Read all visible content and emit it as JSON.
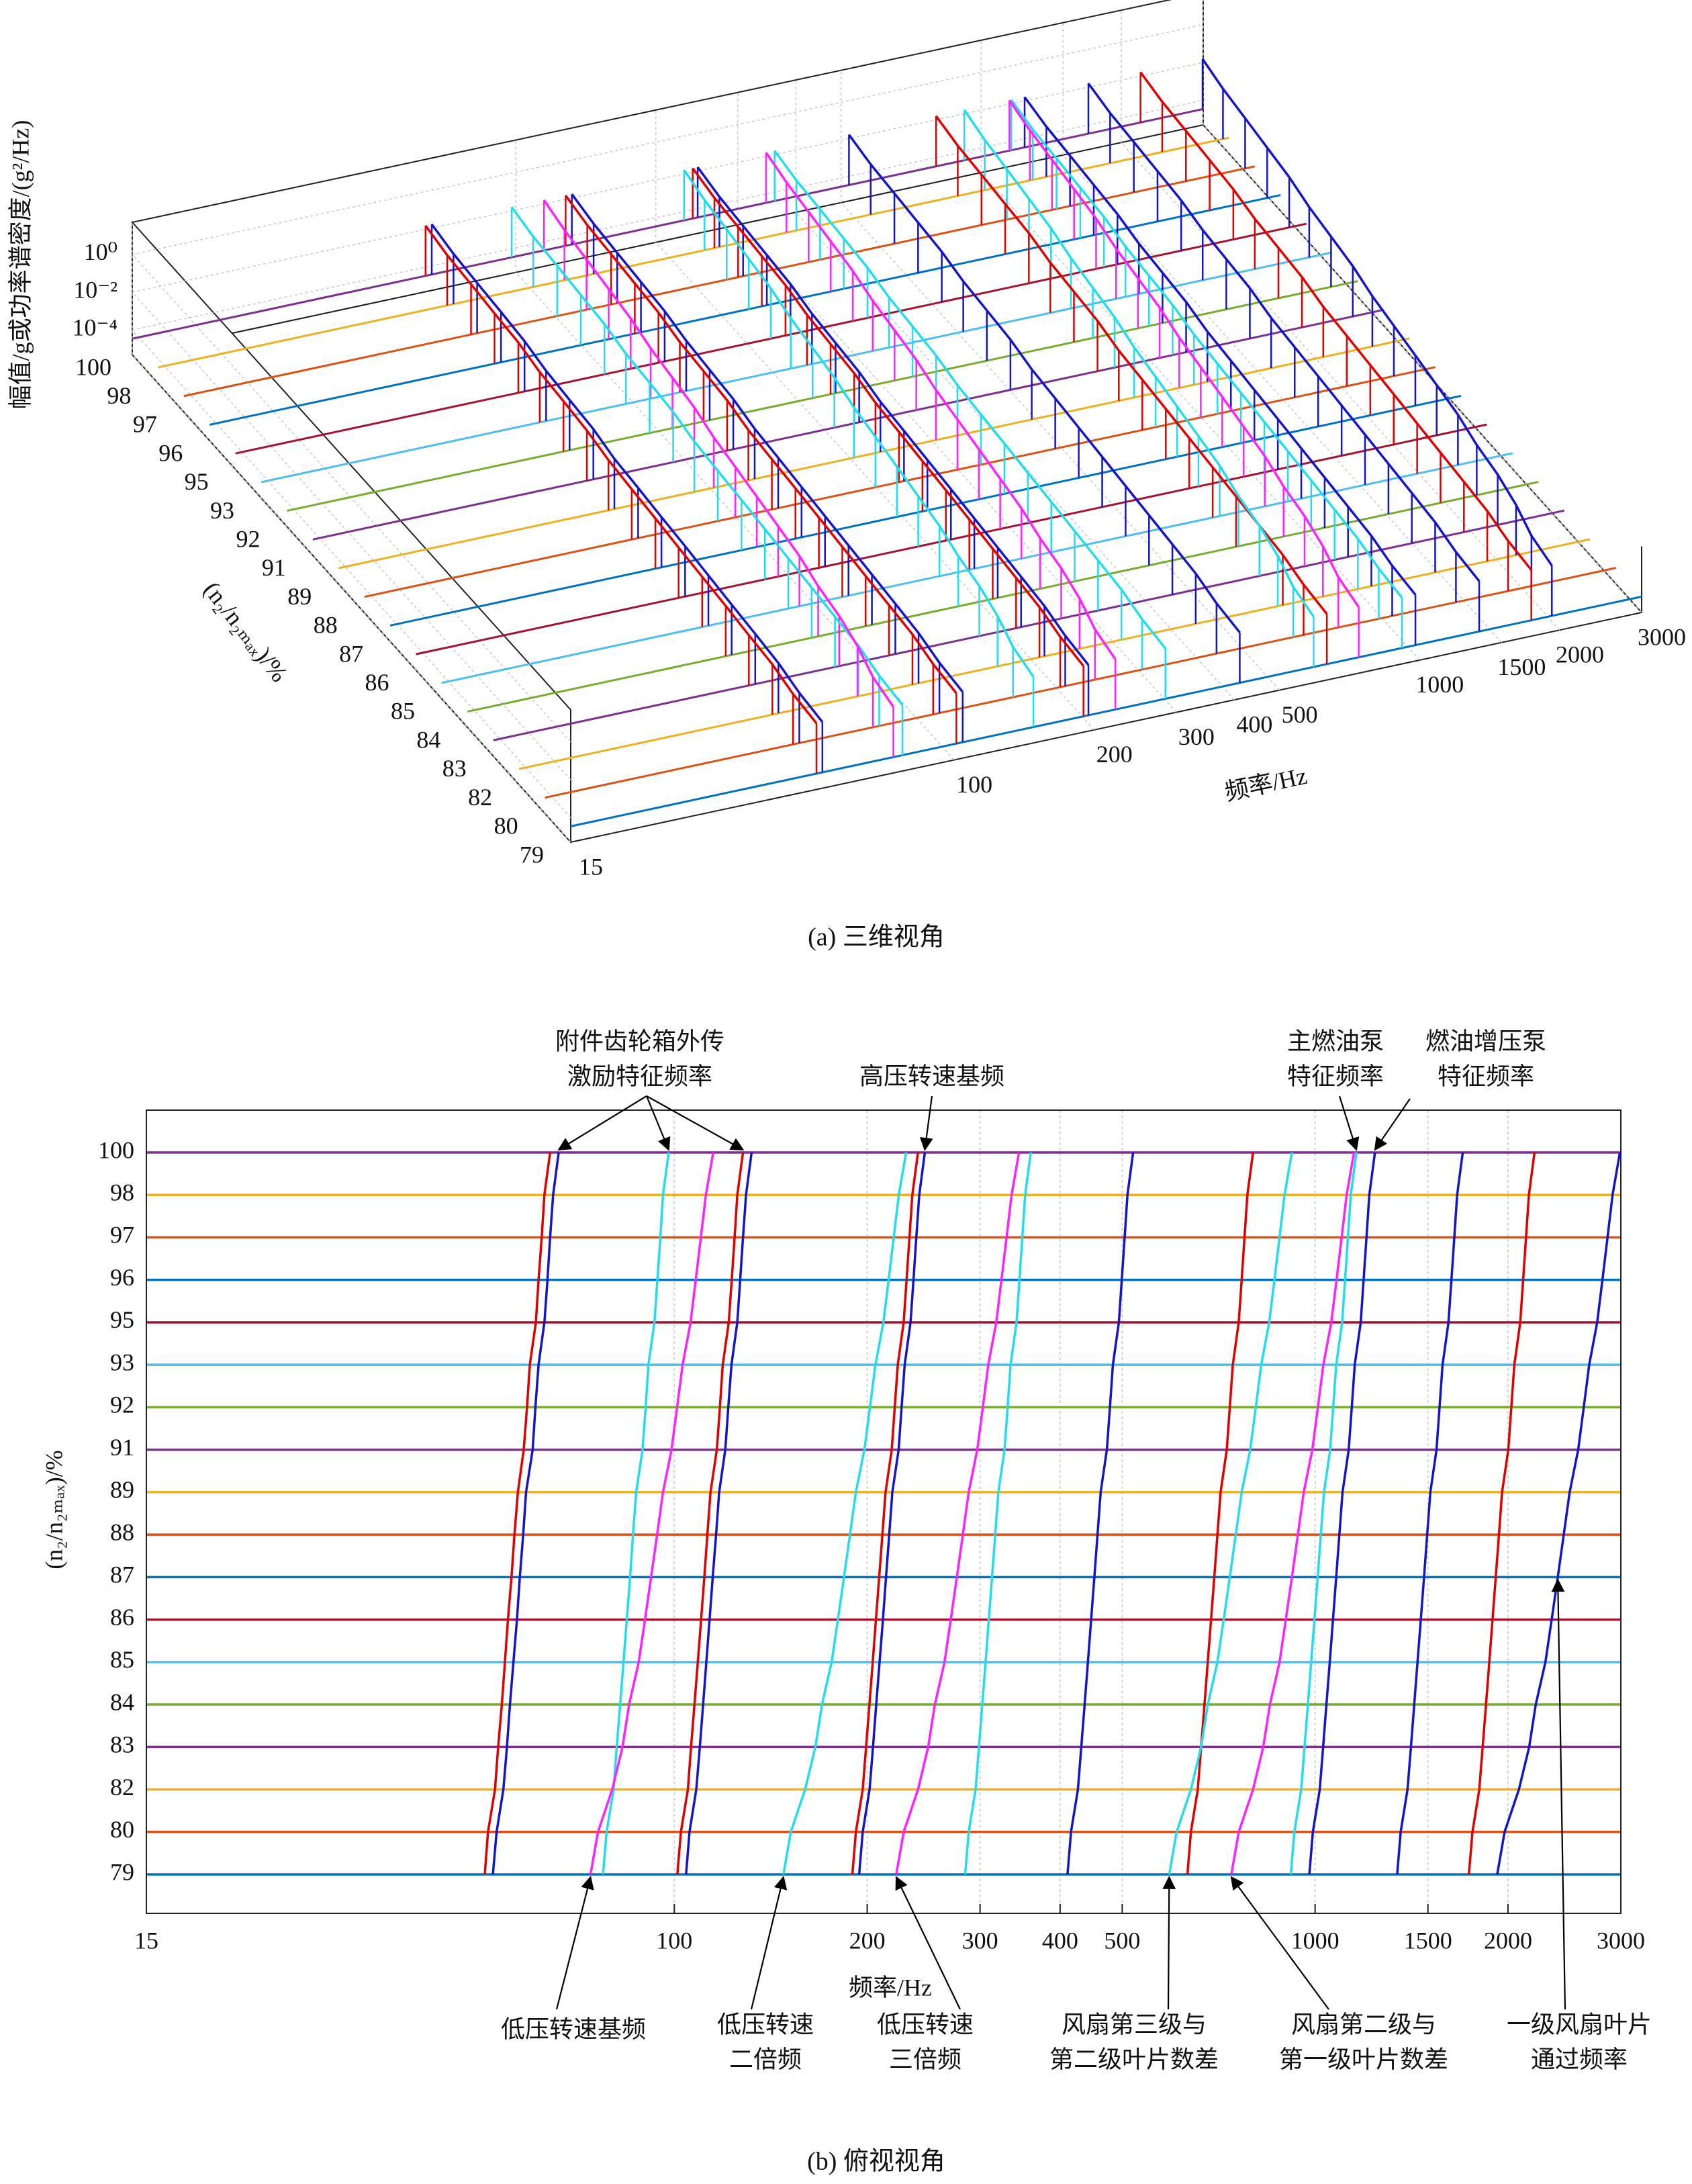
{
  "chart_data": [
    {
      "type": "waterfall3d",
      "caption": "(a) 三维视角",
      "xlabel": "频率/Hz",
      "ylabel": "(n₂/n₂ₘₐₓ)/%",
      "zlabel": "幅值/g或功率谱密度/(g²/Hz)",
      "xlim": [
        15,
        3000
      ],
      "xticks": [
        15,
        100,
        200,
        300,
        400,
        500,
        1000,
        1500,
        2000,
        3000
      ],
      "xscale": "log",
      "zlim": [
        5e-06,
        50
      ],
      "zscale": "log",
      "zticks": [
        {
          "value": 1,
          "label": "10⁰"
        },
        {
          "value": 0.01,
          "label": "10⁻²"
        },
        {
          "value": 0.0001,
          "label": "10⁻⁴"
        }
      ],
      "grid": true
    },
    {
      "type": "line",
      "caption": "(b) 俯视视角",
      "xlabel": "频率/Hz",
      "ylabel": "(n₂/n₂ₘₐₓ)/%",
      "xlim": [
        15,
        3000
      ],
      "xticks": [
        15,
        100,
        200,
        300,
        400,
        500,
        1000,
        1500,
        2000,
        3000
      ],
      "xscale": "log",
      "grid": true,
      "categories": [
        79,
        80,
        82,
        83,
        84,
        85,
        86,
        87,
        88,
        89,
        91,
        92,
        93,
        95,
        96,
        97,
        98,
        100
      ],
      "row_colors": [
        "#0072BD",
        "#D95319",
        "#EDB120",
        "#7E2F8E",
        "#77AC30",
        "#4DBEEE",
        "#A2142F",
        "#0072BD",
        "#D95319",
        "#EDB120",
        "#7E2F8E",
        "#77AC30",
        "#4DBEEE",
        "#A2142F",
        "#0072BD",
        "#D95319",
        "#EDB120",
        "#7E2F8E"
      ],
      "series": [
        {
          "color": "#E00000",
          "values": [
            50.6,
            51.2,
            52.5,
            53.1,
            53.8,
            54.4,
            55.0,
            55.7,
            56.3,
            57.0,
            58.2,
            58.9,
            59.5,
            60.8,
            61.4,
            62.1,
            62.7,
            64
          ]
        },
        {
          "color": "#1414C8",
          "values": [
            52.1,
            52.8,
            54.1,
            54.8,
            55.4,
            56.1,
            56.8,
            57.4,
            58.1,
            58.7,
            60.1,
            60.7,
            61.4,
            62.7,
            63.4,
            64.0,
            64.7,
            66
          ]
        },
        {
          "color": "#22DDEE",
          "values": [
            77.4,
            78.4,
            80.4,
            81.3,
            82.3,
            83.3,
            84.3,
            85.3,
            86.2,
            87.2,
            89.2,
            90.2,
            91.1,
            93.1,
            94.1,
            95.1,
            96.0,
            98
          ]
        },
        {
          "color": "#E00000",
          "values": [
            101.1,
            102.4,
            105.0,
            106.2,
            107.5,
            108.8,
            110.1,
            111.4,
            112.6,
            113.9,
            116.5,
            117.8,
            119.0,
            121.6,
            122.9,
            124.2,
            125.4,
            128
          ]
        },
        {
          "color": "#1414C8",
          "values": [
            104.3,
            105.6,
            108.2,
            109.6,
            110.9,
            112.2,
            113.5,
            114.8,
            116.2,
            117.5,
            120.1,
            121.4,
            122.8,
            125.4,
            126.7,
            128.0,
            129.4,
            132
          ]
        },
        {
          "color": "#E00000",
          "values": [
            189.6,
            192,
            196.8,
            199.2,
            201.6,
            204,
            206.4,
            208.8,
            211.2,
            213.6,
            218.4,
            220.8,
            223.2,
            228,
            230.4,
            232.8,
            235.2,
            240
          ]
        },
        {
          "color": "#1414C8",
          "values": [
            194.3,
            196.8,
            201.7,
            204.2,
            206.6,
            209.1,
            211.6,
            214.0,
            216.5,
            218.9,
            223.9,
            226.3,
            228.8,
            233.7,
            236.2,
            238.6,
            241.1,
            246
          ]
        },
        {
          "color": "#22DDEE",
          "values": [
            284.4,
            288,
            295.2,
            298.8,
            302.4,
            306,
            309.6,
            313.2,
            316.8,
            320.4,
            327.6,
            331.2,
            334.8,
            342,
            345.6,
            349.2,
            352.8,
            360
          ]
        },
        {
          "color": "#1414C8",
          "values": [
            410.8,
            416,
            426.4,
            431.6,
            436.8,
            442,
            447.2,
            452.4,
            457.6,
            462.8,
            473.2,
            478.4,
            483.6,
            494,
            499.2,
            504.4,
            509.6,
            520
          ]
        },
        {
          "color": "#E00000",
          "values": [
            632,
            640,
            656,
            664,
            672,
            680,
            688,
            696,
            704,
            712,
            728,
            736,
            744,
            760,
            768,
            776,
            784,
            800
          ]
        },
        {
          "color": "#22DDEE",
          "values": [
            916.4,
            928,
            951.2,
            962.8,
            974.4,
            986,
            997.6,
            1009.2,
            1020.8,
            1032.4,
            1055.6,
            1067.2,
            1078.8,
            1102,
            1113.6,
            1125.2,
            1136.8,
            1160
          ]
        },
        {
          "color": "#1414C8",
          "values": [
            979.6,
            992,
            1016.8,
            1029.2,
            1041.6,
            1054,
            1066.4,
            1078.8,
            1091.2,
            1103.6,
            1128.4,
            1140.8,
            1153.2,
            1178,
            1190.4,
            1202.8,
            1215.2,
            1240
          ]
        },
        {
          "color": "#1414C8",
          "values": [
            1343,
            1360,
            1394,
            1411,
            1428,
            1445,
            1462,
            1479,
            1496,
            1513,
            1547,
            1564,
            1581,
            1615,
            1632,
            1649,
            1666,
            1700
          ]
        },
        {
          "color": "#E00000",
          "values": [
            1738,
            1760,
            1804,
            1826,
            1848,
            1870,
            1892,
            1914,
            1936,
            1958,
            2002,
            2024,
            2046,
            2090,
            2112,
            2134,
            2156,
            2200
          ]
        },
        {
          "color": "#FF22FF",
          "values": [
            74,
            76,
            80,
            83,
            85,
            88,
            90,
            92,
            94,
            96,
            99,
            101,
            103,
            106,
            108,
            110,
            112,
            115
          ]
        },
        {
          "color": "#22DDEE",
          "values": [
            148,
            152,
            160,
            166,
            170,
            176,
            180,
            184,
            188,
            192,
            198,
            202,
            206,
            212,
            216,
            220,
            224,
            230
          ]
        },
        {
          "color": "#FF22FF",
          "values": [
            222,
            228,
            240,
            249,
            255,
            264,
            270,
            276,
            282,
            288,
            297,
            303,
            309,
            318,
            324,
            330,
            336,
            345
          ]
        },
        {
          "color": "#22DDEE",
          "values": [
            592,
            608,
            640,
            664,
            680,
            704,
            720,
            736,
            752,
            768,
            792,
            808,
            824,
            848,
            864,
            880,
            896,
            920
          ]
        },
        {
          "color": "#FF22FF",
          "values": [
            740,
            760,
            800,
            830,
            850,
            880,
            900,
            920,
            940,
            960,
            990,
            1010,
            1030,
            1060,
            1080,
            1100,
            1120,
            1150
          ]
        },
        {
          "color": "#1414C8",
          "values": [
            1924,
            1976,
            2080,
            2158,
            2210,
            2288,
            2340,
            2392,
            2444,
            2496,
            2574,
            2626,
            2678,
            2756,
            2808,
            2860,
            2912,
            2990
          ]
        }
      ],
      "annotations": [
        {
          "text": [
            "附件齿轮箱外传",
            "激励特征频率"
          ],
          "targets": [
            {
              "x": 66,
              "y": 100
            },
            {
              "x": 98,
              "y": 100
            },
            {
              "x": 128,
              "y": 100
            }
          ]
        },
        {
          "text": [
            "高压转速基频"
          ],
          "targets": [
            {
              "x": 246,
              "y": 100
            }
          ]
        },
        {
          "text": [
            "主燃油泵",
            "特征频率"
          ],
          "targets": [
            {
              "x": 1160,
              "y": 100
            }
          ]
        },
        {
          "text": [
            "燃油增压泵",
            "特征频率"
          ],
          "targets": [
            {
              "x": 1240,
              "y": 100
            }
          ]
        },
        {
          "text": [
            "低压转速基频"
          ],
          "targets": [
            {
              "x": 74,
              "y": 79
            }
          ]
        },
        {
          "text": [
            "低压转速",
            "二倍频"
          ],
          "targets": [
            {
              "x": 148,
              "y": 79
            }
          ]
        },
        {
          "text": [
            "低压转速",
            "三倍频"
          ],
          "targets": [
            {
              "x": 222,
              "y": 79
            }
          ]
        },
        {
          "text": [
            "风扇第三级与",
            "第二级叶片数差"
          ],
          "targets": [
            {
              "x": 592,
              "y": 79
            }
          ]
        },
        {
          "text": [
            "风扇第二级与",
            "第一级叶片数差"
          ],
          "targets": [
            {
              "x": 740,
              "y": 79
            }
          ]
        },
        {
          "text": [
            "一级风扇叶片",
            "通过频率"
          ],
          "targets": [
            {
              "x": 2392,
              "y": 87
            }
          ]
        }
      ]
    }
  ]
}
